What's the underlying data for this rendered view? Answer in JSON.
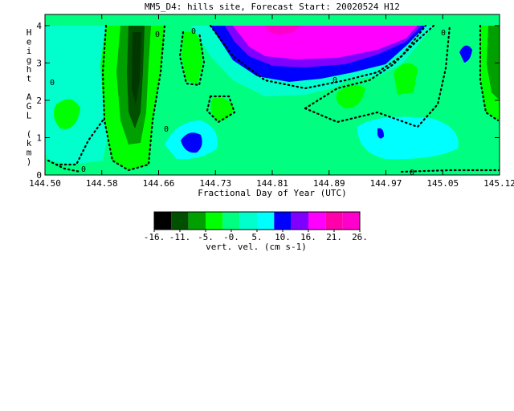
{
  "chart_data": {
    "type": "heatmap",
    "title": "MM5_D4: hills site,  Forecast Start: 20020524 H12",
    "xlabel": "Fractional Day of Year (UTC)",
    "ylabel": "Height AGL (km)",
    "x_ticks": [
      "144.50",
      "144.58",
      "144.66",
      "144.73",
      "144.81",
      "144.89",
      "144.97",
      "145.05",
      "145.12"
    ],
    "y_ticks": [
      "0",
      "1",
      "2",
      "3",
      "4"
    ],
    "xlim": [
      144.5,
      145.12
    ],
    "ylim": [
      0,
      4.3
    ],
    "contour_labels": [
      "0"
    ],
    "colorbar": {
      "label": "vert. vel. (cm s-1)",
      "tick_labels": [
        "-16.",
        "-11.",
        "-5.",
        "-0.",
        "5.",
        "10.",
        "16.",
        "21.",
        "26."
      ],
      "colors": [
        "#000000",
        "#005000",
        "#00a000",
        "#00ff00",
        "#00ff80",
        "#00ffcc",
        "#00ffff",
        "#0000ff",
        "#8000ff",
        "#ff00ff",
        "#ff00aa",
        "#ff00cc"
      ],
      "range": [
        -16,
        26
      ]
    },
    "features": [
      {
        "x": 144.62,
        "y": 2.8,
        "value": -16
      },
      {
        "x": 144.62,
        "y": 1.6,
        "value": -11
      },
      {
        "x": 144.58,
        "y": 1.2,
        "value": -3
      },
      {
        "x": 144.7,
        "y": 0.9,
        "value": 12
      },
      {
        "x": 144.86,
        "y": 4.0,
        "value": 24
      },
      {
        "x": 144.96,
        "y": 1.0,
        "value": 12
      },
      {
        "x": 145.07,
        "y": 3.4,
        "value": 11
      },
      {
        "x": 145.11,
        "y": 3.5,
        "value": -14
      }
    ]
  }
}
